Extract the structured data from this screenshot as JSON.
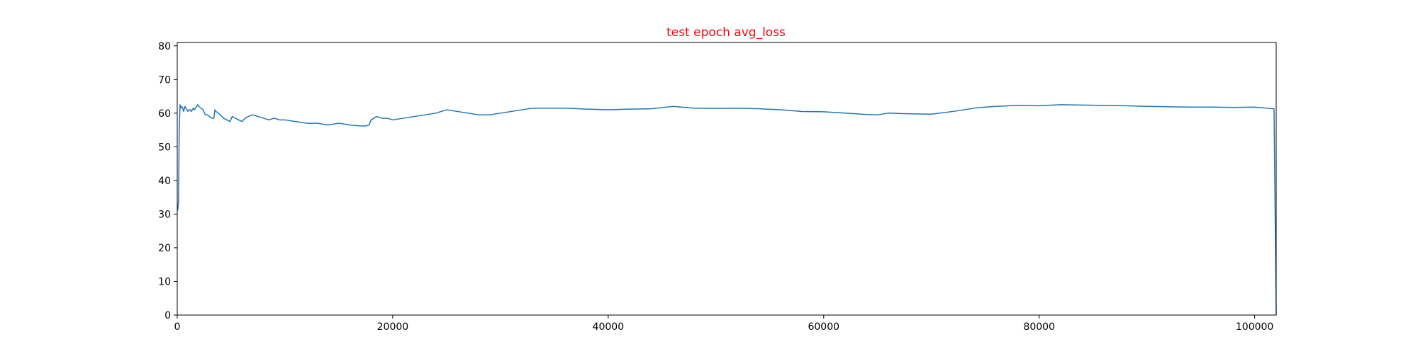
{
  "chart_data": {
    "type": "line",
    "title": "test epoch avg_loss",
    "title_color": "#ff0000",
    "xlabel": "",
    "ylabel": "",
    "xlim": [
      0,
      102000
    ],
    "ylim": [
      0,
      81
    ],
    "x_ticks": [
      0,
      20000,
      40000,
      60000,
      80000,
      100000
    ],
    "y_ticks": [
      0,
      10,
      20,
      30,
      40,
      50,
      60,
      70,
      80
    ],
    "grid": false,
    "legend": "none",
    "series": [
      {
        "color": "#1f77b4",
        "x": [
          0,
          60,
          120,
          180,
          260,
          320,
          400,
          500,
          600,
          700,
          800,
          900,
          1000,
          1100,
          1200,
          1300,
          1400,
          1500,
          1600,
          1700,
          1800,
          1900,
          2000,
          2200,
          2400,
          2600,
          2800,
          3000,
          3200,
          3400,
          3500,
          3600,
          3800,
          4000,
          4300,
          4600,
          4900,
          5100,
          5400,
          5700,
          6000,
          6300,
          6600,
          7000,
          7500,
          8000,
          8500,
          9000,
          9500,
          10000,
          11000,
          12000,
          13000,
          14000,
          15000,
          16000,
          17000,
          17500,
          17800,
          18000,
          18500,
          19000,
          19500,
          20000,
          21000,
          22000,
          23000,
          24000,
          25000,
          26000,
          27000,
          28000,
          29000,
          30000,
          31000,
          32000,
          33000,
          34000,
          36000,
          38000,
          40000,
          42000,
          44000,
          46000,
          48000,
          50000,
          52000,
          54000,
          56000,
          58000,
          60000,
          62000,
          64000,
          65000,
          66000,
          68000,
          70000,
          72000,
          74000,
          75000,
          76000,
          78000,
          80000,
          82000,
          84000,
          86000,
          88000,
          90000,
          92000,
          94000,
          96000,
          98000,
          100000,
          101000,
          101800,
          102000
        ],
        "values": [
          31,
          31.5,
          34,
          55,
          62.5,
          61.5,
          62,
          61.5,
          60.5,
          62,
          61.5,
          61,
          60.5,
          61,
          61,
          60.5,
          61,
          61.5,
          61,
          61.5,
          62,
          62.5,
          62,
          61.5,
          61,
          59.5,
          59.5,
          59,
          58.5,
          58.5,
          61,
          60.5,
          60,
          59.5,
          58.5,
          58,
          57.5,
          59,
          58.5,
          58,
          57.5,
          58.5,
          59,
          59.5,
          59,
          58.5,
          58,
          58.5,
          58,
          58,
          57.5,
          57,
          57,
          56.5,
          57,
          56.5,
          56.2,
          56.2,
          56.5,
          58,
          59,
          58.5,
          58.5,
          58,
          58.5,
          59,
          59.5,
          60,
          61,
          60.5,
          60,
          59.5,
          59.5,
          60,
          60.5,
          61,
          61.5,
          61.5,
          61.5,
          61.2,
          61,
          61.2,
          61.3,
          62,
          61.5,
          61.4,
          61.5,
          61.3,
          61.0,
          60.5,
          60.4,
          60.0,
          59.6,
          59.5,
          60.0,
          59.8,
          59.7,
          60.5,
          61.5,
          61.8,
          62.0,
          62.3,
          62.2,
          62.5,
          62.4,
          62.3,
          62.2,
          62.0,
          61.9,
          61.8,
          61.8,
          61.7,
          61.8,
          61.5,
          61.3,
          0
        ]
      }
    ]
  }
}
